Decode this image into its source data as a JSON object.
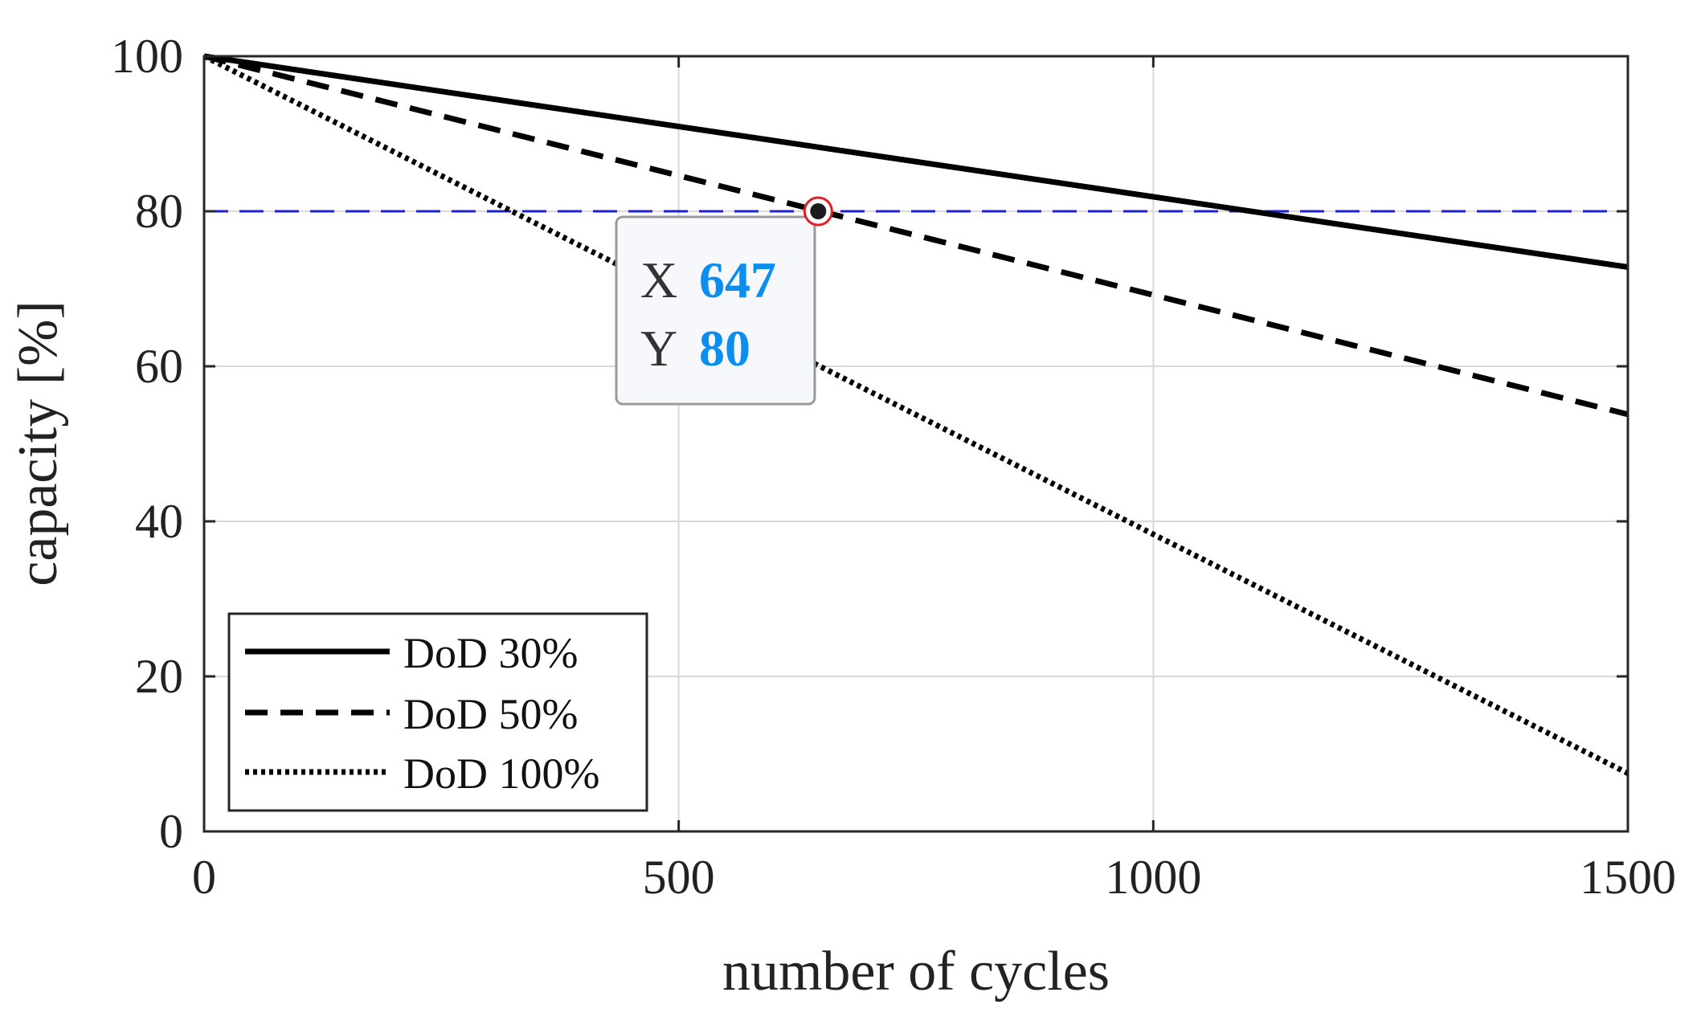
{
  "chart_data": {
    "type": "line",
    "xlabel": "number of cycles",
    "ylabel": "capacity [%]",
    "xlim": [
      0,
      1500
    ],
    "ylim": [
      0,
      100
    ],
    "xticks": [
      0,
      500,
      1000,
      1500
    ],
    "yticks": [
      0,
      20,
      40,
      60,
      80,
      100
    ],
    "grid": true,
    "legend_position": "bottom-left",
    "series": [
      {
        "name": "DoD 30%",
        "style": "solid",
        "x": [
          0,
          1500
        ],
        "y": [
          100,
          72.8
        ]
      },
      {
        "name": "DoD 50%",
        "style": "dashed",
        "x": [
          0,
          1500
        ],
        "y": [
          100,
          53.8
        ]
      },
      {
        "name": "DoD 100%",
        "style": "dotted",
        "x": [
          0,
          1500
        ],
        "y": [
          100,
          7.5
        ]
      }
    ],
    "reference_line": {
      "y": 80,
      "color": "#1f1fd6",
      "style": "dashed"
    },
    "datatip": {
      "x_label": "X",
      "x_value": "647",
      "y_label": "Y",
      "y_value": "80",
      "x": 647,
      "y": 80,
      "value_color": "#0a8ff0"
    }
  }
}
